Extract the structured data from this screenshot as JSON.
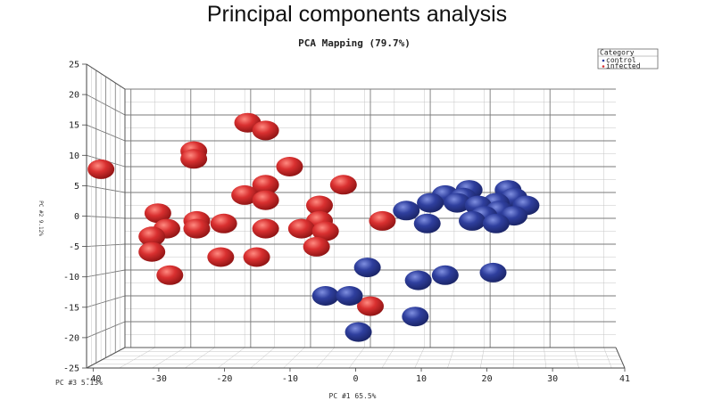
{
  "slide": {
    "title": "Principal components analysis"
  },
  "chart_data": {
    "type": "scatter",
    "title": "PCA Mapping (79.7%)",
    "xlabel": "PC #1 65.5%",
    "ylabel": "PC #2 9.12%",
    "zlabel": "PC #3 5.13%",
    "xlim": [
      -41,
      41
    ],
    "ylim": [
      -25,
      25
    ],
    "x_ticks": [
      "-40",
      "-30",
      "-20",
      "-10",
      "0",
      "10",
      "20",
      "30",
      "41"
    ],
    "y_ticks": [
      "25",
      "20",
      "15",
      "10",
      "5",
      "0",
      "-5",
      "-10",
      "-15",
      "-20",
      "-25"
    ],
    "grid": true,
    "legend": {
      "title": "Category",
      "position": "top-right",
      "entries": [
        "control",
        "infected"
      ]
    },
    "colors": {
      "control": "#2f3f9e",
      "infected": "#d93030"
    },
    "series": [
      {
        "name": "infected",
        "points": [
          [
            -20.5,
            18.5
          ],
          [
            -17.5,
            17
          ],
          [
            -29.5,
            13
          ],
          [
            -29.5,
            11.5
          ],
          [
            -13.5,
            10
          ],
          [
            -45,
            9.5
          ],
          [
            -17.5,
            6.5
          ],
          [
            -4.5,
            6.5
          ],
          [
            -21,
            4.5
          ],
          [
            -17.5,
            3.5
          ],
          [
            -8.5,
            2.5
          ],
          [
            -35.5,
            1
          ],
          [
            -29,
            -0.5
          ],
          [
            -24.5,
            -1
          ],
          [
            -8.5,
            -0.5
          ],
          [
            2,
            -0.5
          ],
          [
            -34,
            -2
          ],
          [
            -29,
            -2
          ],
          [
            -17.5,
            -2
          ],
          [
            -11.5,
            -2
          ],
          [
            -7.5,
            -2.5
          ],
          [
            -36.5,
            -3.5
          ],
          [
            -9,
            -5.5
          ],
          [
            -36.5,
            -6.5
          ],
          [
            -25,
            -7.5
          ],
          [
            -19,
            -7.5
          ],
          [
            -33.5,
            -11
          ],
          [
            0,
            -17
          ]
        ]
      },
      {
        "name": "control",
        "points": [
          [
            16.5,
            5.5
          ],
          [
            23,
            5.5
          ],
          [
            12.5,
            4.5
          ],
          [
            15.5,
            4
          ],
          [
            24,
            4
          ],
          [
            10,
            3
          ],
          [
            14.5,
            3
          ],
          [
            21,
            3
          ],
          [
            26,
            2.5
          ],
          [
            18,
            2.5
          ],
          [
            6,
            1.5
          ],
          [
            21.5,
            1.5
          ],
          [
            24,
            0.5
          ],
          [
            19,
            0.5
          ],
          [
            17,
            -0.5
          ],
          [
            9.5,
            -1
          ],
          [
            21,
            -1
          ],
          [
            -0.5,
            -9.5
          ],
          [
            8,
            -12
          ],
          [
            12.5,
            -11
          ],
          [
            20.5,
            -10.5
          ],
          [
            -7.5,
            -15
          ],
          [
            -3.5,
            -15
          ],
          [
            7.5,
            -19
          ],
          [
            -2,
            -22
          ]
        ]
      }
    ]
  }
}
